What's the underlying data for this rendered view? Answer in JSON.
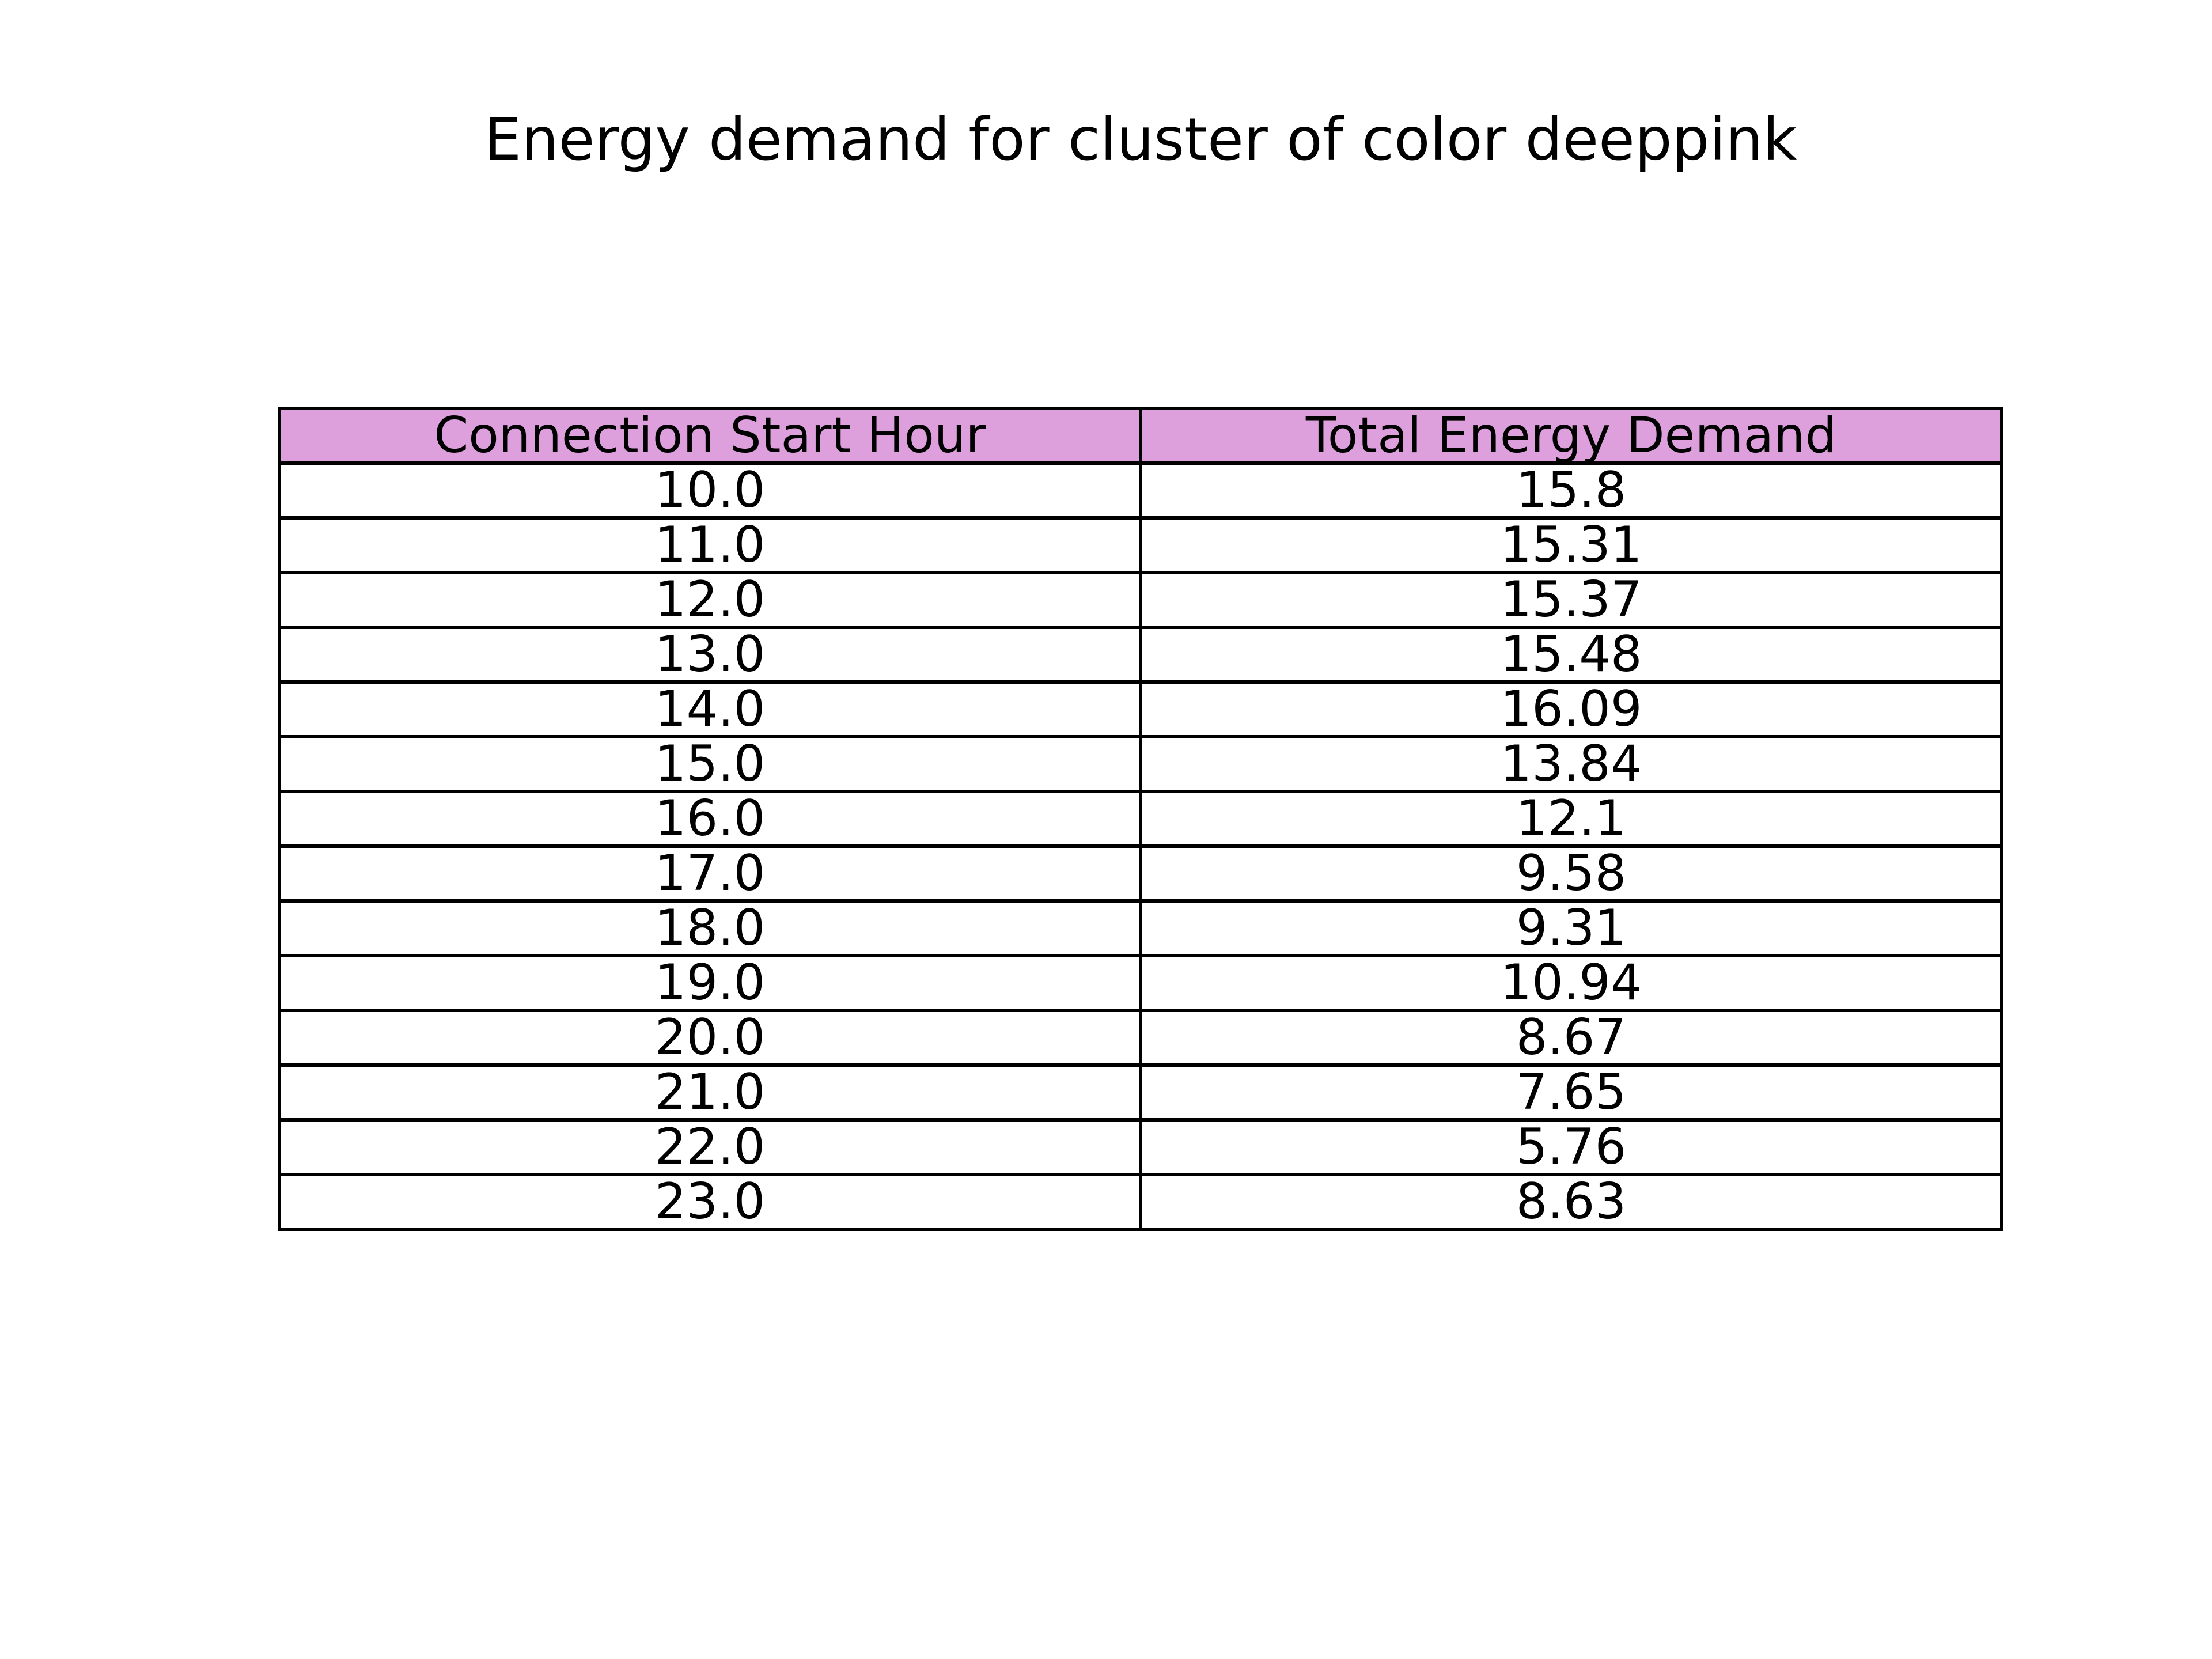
{
  "chart_data": {
    "type": "table",
    "title": "Energy demand for cluster of color deeppink",
    "header_color": "#dda0dd",
    "columns": [
      "Connection Start Hour",
      "Total Energy Demand"
    ],
    "rows": [
      [
        "10.0",
        "15.8"
      ],
      [
        "11.0",
        "15.31"
      ],
      [
        "12.0",
        "15.37"
      ],
      [
        "13.0",
        "15.48"
      ],
      [
        "14.0",
        "16.09"
      ],
      [
        "15.0",
        "13.84"
      ],
      [
        "16.0",
        "12.1"
      ],
      [
        "17.0",
        "9.58"
      ],
      [
        "18.0",
        "9.31"
      ],
      [
        "19.0",
        "10.94"
      ],
      [
        "20.0",
        "8.67"
      ],
      [
        "21.0",
        "7.65"
      ],
      [
        "22.0",
        "5.76"
      ],
      [
        "23.0",
        "8.63"
      ]
    ]
  }
}
